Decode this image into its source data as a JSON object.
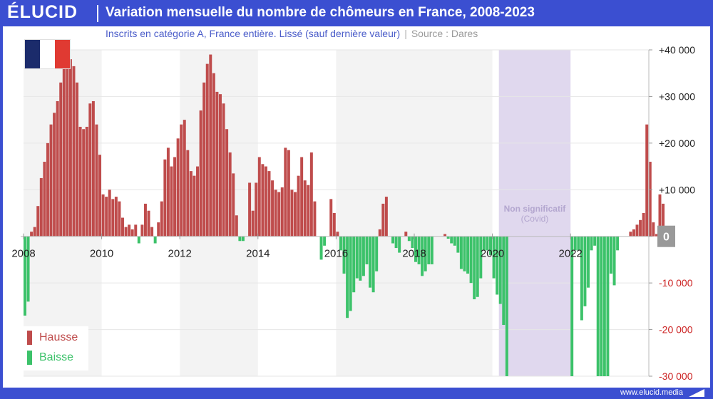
{
  "header": {
    "logo": "ÉLUCID",
    "title": "Variation mensuelle du nombre de chômeurs en France, 2008-2023",
    "subtitle": "Inscrits en catégorie A, France entière. Lissé (sauf dernière valeur)",
    "source": "Source : Dares"
  },
  "footer": {
    "url": "www.elucid.media"
  },
  "colors": {
    "brand": "#3b4fd1",
    "hausse": "#bf4c4c",
    "baisse": "#3cc26a",
    "covid_band": "#e0d8ee",
    "alt_band": "#f3f3f3",
    "negative_tick": "#cc2222",
    "flag_blue": "#1b2b6b",
    "flag_white": "#ffffff",
    "flag_red": "#e03a32"
  },
  "legend": {
    "hausse": "Hausse",
    "baisse": "Baisse"
  },
  "covid_annotation": {
    "line1": "Non significatif",
    "line2": "(Covid)"
  },
  "chart_data": {
    "type": "bar",
    "title": "Variation mensuelle du nombre de chômeurs en France, 2008-2023",
    "xlabel": "",
    "ylabel": "",
    "x_tick_labels": [
      "2008",
      "2010",
      "2012",
      "2014",
      "2016",
      "2018",
      "2020",
      "2022"
    ],
    "y_tick_labels": [
      "+40 000",
      "+30 000",
      "+20 000",
      "+10 000",
      "0",
      "-10 000",
      "-20 000",
      "-30 000"
    ],
    "y_ticks": [
      40000,
      30000,
      20000,
      10000,
      0,
      -10000,
      -20000,
      -30000
    ],
    "ylim": [
      -30000,
      40000
    ],
    "x_start": "2008-01",
    "x_end": "2023-12",
    "grid": true,
    "shaded_years": [
      "2008",
      "2012",
      "2016",
      "2018"
    ],
    "covid_period": [
      "2020-03",
      "2021-12"
    ],
    "series": [
      {
        "name": "Hausse",
        "color": "#bf4c4c"
      },
      {
        "name": "Baisse",
        "color": "#3cc26a"
      }
    ],
    "values": [
      -17000,
      -14000,
      1000,
      2000,
      6500,
      12500,
      16000,
      20000,
      24000,
      26500,
      29000,
      33000,
      38500,
      41000,
      38000,
      36500,
      33000,
      23500,
      23000,
      23500,
      28500,
      29000,
      24000,
      17500,
      9000,
      8500,
      10000,
      8000,
      8500,
      7500,
      4000,
      2000,
      2500,
      1500,
      2500,
      -1500,
      2500,
      7000,
      5500,
      2000,
      -1500,
      3000,
      7500,
      16500,
      19000,
      15000,
      17000,
      21000,
      24000,
      25000,
      18500,
      14000,
      13000,
      15000,
      27000,
      33000,
      37000,
      39000,
      35000,
      31000,
      30500,
      28500,
      23000,
      18000,
      13500,
      4500,
      -1000,
      -1000,
      0,
      11500,
      5500,
      11500,
      17000,
      15500,
      15000,
      14000,
      12000,
      10000,
      9500,
      10500,
      19000,
      18500,
      10000,
      9500,
      13000,
      17000,
      12000,
      11000,
      18000,
      7500,
      0,
      -5000,
      -2000,
      0,
      8000,
      5000,
      1000,
      -3000,
      -8000,
      -17500,
      -16000,
      -12000,
      -9000,
      -9500,
      -8500,
      -6000,
      -11000,
      -12000,
      -7500,
      1500,
      7000,
      8500,
      0,
      -1500,
      -2500,
      -3500,
      0,
      1000,
      -1000,
      -2500,
      -5500,
      -6000,
      -8500,
      -7500,
      -6000,
      -6000,
      0,
      0,
      0,
      500,
      -500,
      -1500,
      -2000,
      -3500,
      -7000,
      -7500,
      -8000,
      -10000,
      -13500,
      -13000,
      -9000,
      -3000,
      -3000,
      -4000,
      -9000,
      -12500,
      -14500,
      -19000,
      -30000,
      0,
      0,
      0,
      0,
      0,
      0,
      0,
      0,
      0,
      0,
      0,
      0,
      0,
      0,
      0,
      0,
      0,
      0,
      0,
      -30000,
      -3000,
      -3000,
      -18000,
      -15000,
      -11000,
      -3000,
      -2000,
      -30000,
      -30000,
      -30000,
      -30000,
      -8000,
      -10500,
      -3000,
      0,
      0,
      0,
      1000,
      1500,
      2500,
      3500,
      5000,
      24000,
      16000,
      3000,
      500,
      9000,
      7000,
      -2000
    ]
  }
}
